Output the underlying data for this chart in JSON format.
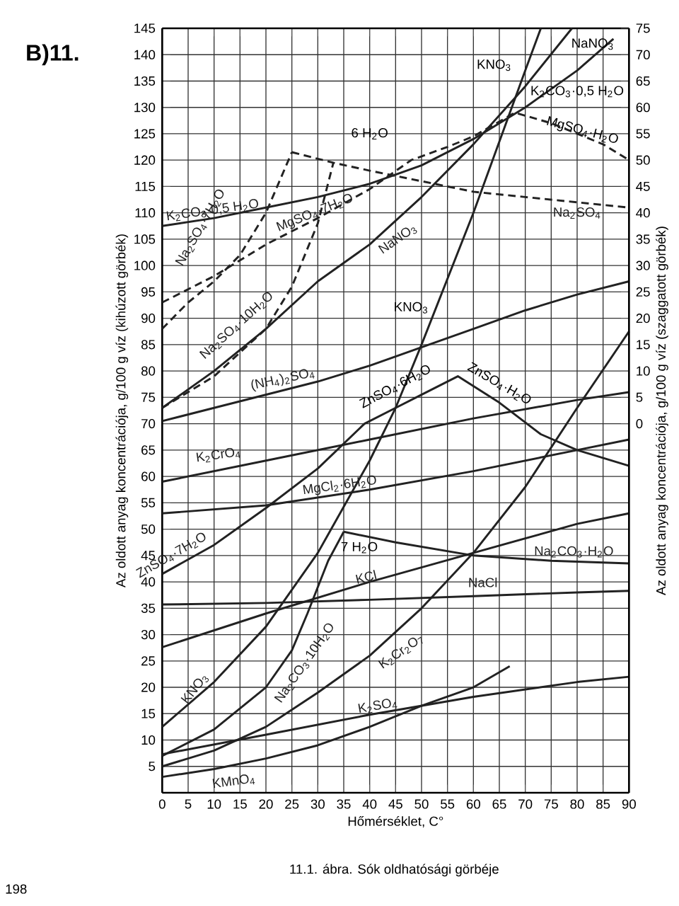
{
  "chart_data": {
    "type": "line",
    "title": "B)11.",
    "xlabel": "Hőmérséklet, C°",
    "ylabel": "Az oldott anyag koncentrációja,  g/100 g víz (kihúzott görbék)",
    "y2label": "Az oldott anyag koncentrációja, g/100 g víz (szaggatott görbék)",
    "xlim": [
      0,
      90
    ],
    "xticks": [
      0,
      5,
      10,
      15,
      20,
      25,
      30,
      35,
      40,
      45,
      50,
      55,
      60,
      65,
      70,
      75,
      80,
      85,
      90
    ],
    "ylim": [
      0,
      145
    ],
    "yticks": [
      {
        "value": 0,
        "label": null
      },
      5,
      10,
      15,
      20,
      25,
      30,
      35,
      40,
      45,
      50,
      55,
      60,
      65,
      70,
      75,
      80,
      85,
      90,
      95,
      100,
      105,
      110,
      115,
      120,
      125,
      130,
      135,
      140,
      145
    ],
    "y2lim": [
      -70,
      75
    ],
    "y2ticks": [
      0,
      5,
      10,
      15,
      20,
      25,
      30,
      35,
      40,
      45,
      50,
      55,
      60,
      65,
      70,
      75
    ],
    "grid": true,
    "line_style": "solid",
    "series": [
      {
        "name": "KNO$_{3}$",
        "color": "#222222",
        "x": [
          0,
          10,
          20,
          30,
          40,
          45,
          50,
          60,
          70,
          73
        ],
        "values": [
          12.5,
          21,
          31.5,
          45.5,
          63,
          73,
          85,
          110,
          137,
          145
        ]
      },
      {
        "name": "NaNO$_{3}$",
        "color": "#222222",
        "x": [
          0,
          10,
          20,
          30,
          40,
          50,
          60,
          70,
          79
        ],
        "values": [
          73,
          80,
          88,
          97,
          104,
          113,
          123,
          134,
          145
        ]
      },
      {
        "name": "K$_{2}$CO$_{3}$·0,5 H$_{2}$O",
        "color": "#222222",
        "x": [
          0,
          10,
          20,
          30,
          40,
          50,
          60,
          70,
          80,
          87
        ],
        "values": [
          107.5,
          109,
          111,
          113,
          115.5,
          119,
          124,
          130,
          137,
          143
        ]
      },
      {
        "name": "(NH$_{4}$)$_{2}$SO$_{4}$",
        "color": "#222222",
        "x": [
          0,
          10,
          20,
          30,
          40,
          50,
          60,
          70,
          80,
          90
        ],
        "values": [
          70.5,
          73,
          75.5,
          78,
          81,
          84.5,
          88,
          91.5,
          94.5,
          97
        ]
      },
      {
        "name": "ZnSO$_{4}$·7H$_{2}$O",
        "color": "#222222",
        "x": [
          0,
          10,
          20,
          30,
          39,
          45,
          50,
          57,
          65,
          73,
          80,
          90
        ],
        "values": [
          41.5,
          47,
          54,
          61.5,
          70,
          73,
          75.5,
          79,
          74,
          68,
          65,
          62
        ]
      },
      {
        "name": "K$_{2}$CrO$_{4}$",
        "color": "#222222",
        "x": [
          0,
          20,
          40,
          60,
          80,
          90
        ],
        "values": [
          59,
          63,
          67,
          71,
          74.5,
          76
        ]
      },
      {
        "name": "MgCl$_{2}$·6H$_{2}$O",
        "color": "#222222",
        "x": [
          0,
          20,
          40,
          60,
          80,
          90
        ],
        "values": [
          53,
          54.5,
          57.5,
          61,
          65,
          67
        ]
      },
      {
        "name": "Na$_{2}$CO$_{3}$·10H$_{2}$O",
        "color": "#222222",
        "x": [
          0,
          10,
          20,
          25,
          28,
          32,
          35
        ],
        "values": [
          7,
          12,
          20,
          27,
          34,
          44,
          49.5
        ]
      },
      {
        "name": "Na$_{2}$CO$_{3}$·H$_{2}$O",
        "color": "#222222",
        "x": [
          35,
          45,
          60,
          75,
          90
        ],
        "values": [
          49.5,
          47.5,
          45,
          44,
          43.5
        ]
      },
      {
        "name": "KCl",
        "color": "#222222",
        "x": [
          0,
          20,
          40,
          60,
          80,
          90
        ],
        "values": [
          27.6,
          34,
          40,
          45.5,
          51,
          53
        ]
      },
      {
        "name": "NaCl",
        "color": "#222222",
        "x": [
          0,
          20,
          40,
          60,
          80,
          90
        ],
        "values": [
          35.7,
          36,
          36.6,
          37.3,
          38,
          38.3
        ]
      },
      {
        "name": "K$_{2}$Cr$_{2}$O$_{7}$",
        "color": "#222222",
        "x": [
          0,
          10,
          20,
          30,
          40,
          50,
          60,
          70,
          80,
          90
        ],
        "values": [
          5,
          8,
          12.5,
          19,
          26,
          35,
          45.5,
          58,
          73,
          87.5
        ]
      },
      {
        "name": "K$_{2}$SO$_{4}$",
        "color": "#222222",
        "x": [
          0,
          20,
          40,
          60,
          80,
          90
        ],
        "values": [
          7.3,
          11,
          14.8,
          18.2,
          21,
          22
        ]
      },
      {
        "name": "KMnO$_{4}$",
        "color": "#222222",
        "x": [
          0,
          10,
          20,
          30,
          40,
          50,
          60,
          67
        ],
        "values": [
          3,
          4.5,
          6.5,
          9,
          12.5,
          16.5,
          20,
          24
        ]
      },
      {
        "name": "Na$_{2}$SO$_{4}$·7H$_{2}$O",
        "color": "#222222",
        "axis": "y2",
        "line_style": "dashed",
        "x": [
          0,
          5,
          10,
          15,
          20,
          25
        ],
        "values": [
          18,
          23,
          27,
          32,
          40,
          51.5
        ]
      },
      {
        "name": "Na$_{2}$SO$_{4}$·10H$_{2}$O",
        "color": "#222222",
        "axis": "y2",
        "line_style": "dashed",
        "x": [
          0,
          10,
          20,
          25,
          30,
          33
        ],
        "values": [
          3,
          9,
          18,
          26,
          38,
          49.5
        ]
      },
      {
        "name": "Na$_{2}$SO$_{4}$",
        "color": "#222222",
        "axis": "y2",
        "line_style": "dashed",
        "x": [
          25,
          33,
          40,
          50,
          60,
          70,
          80,
          90
        ],
        "values": [
          51.5,
          49.5,
          48,
          46,
          44,
          43,
          42,
          41
        ]
      },
      {
        "name": "MgSO$_{4}$·7H$_{2}$O",
        "color": "#222222",
        "axis": "y2",
        "line_style": "dashed",
        "x": [
          0,
          10,
          20,
          30,
          40,
          48,
          55,
          60,
          68,
          75,
          80,
          85,
          90
        ],
        "values": [
          23,
          28,
          34,
          39,
          44.5,
          50,
          52.5,
          54.5,
          59,
          57,
          55,
          53,
          50
        ]
      }
    ],
    "annotations": [
      "KNO$_{3}$",
      "KNO$_{3}$",
      "NaNO$_{3}$",
      "K$_{2}$CO$_{3}$·0,5 H$_{2}$O",
      "7 H$_{2}$O",
      "ZnSO$_{4}$·6H$_{2}$O",
      "ZnSO$_{4}$·H$_{2}$O",
      "6 H$_{2}$O",
      "MgSO$_{4}$·H$_{2}$O",
      "11.1. ábra. Sók oldhatósági görbéje",
      "198"
    ]
  }
}
